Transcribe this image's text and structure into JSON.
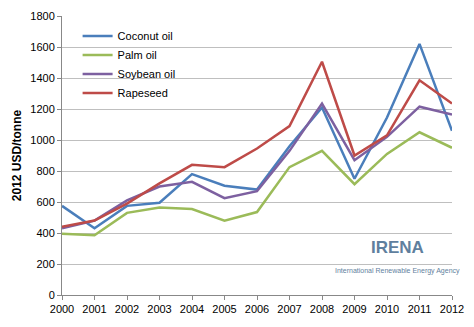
{
  "chart_data": {
    "type": "line",
    "y_label": "2012 USD/tonne",
    "annotations": [
      "IRENA",
      "International Renewable Energy Agency"
    ],
    "categories": [
      "2000",
      "2001",
      "2002",
      "2003",
      "2004",
      "2005",
      "2006",
      "2007",
      "2008",
      "2009",
      "2010",
      "2011",
      "2012"
    ],
    "series": [
      {
        "name": "Coconut oil",
        "color": "#4a7ebb",
        "values": [
          575,
          430,
          575,
          595,
          780,
          705,
          680,
          960,
          1210,
          750,
          1145,
          1620,
          1060
        ]
      },
      {
        "name": "Palm oil",
        "color": "#9bbb59",
        "values": [
          395,
          385,
          530,
          565,
          555,
          480,
          535,
          825,
          930,
          715,
          910,
          1050,
          950
        ]
      },
      {
        "name": "Soybean oil",
        "color": "#7d60a0",
        "values": [
          430,
          480,
          610,
          700,
          730,
          625,
          670,
          930,
          1235,
          870,
          1020,
          1215,
          1165
        ]
      },
      {
        "name": "Rapeseed",
        "color": "#be4b48",
        "values": [
          440,
          480,
          590,
          720,
          840,
          825,
          945,
          1090,
          1505,
          900,
          1030,
          1385,
          1235
        ]
      }
    ],
    "ylim": [
      0,
      1800
    ],
    "yticks": [
      0,
      200,
      400,
      600,
      800,
      1000,
      1200,
      1400,
      1600,
      1800
    ],
    "grid": true,
    "legend": "upper left"
  }
}
